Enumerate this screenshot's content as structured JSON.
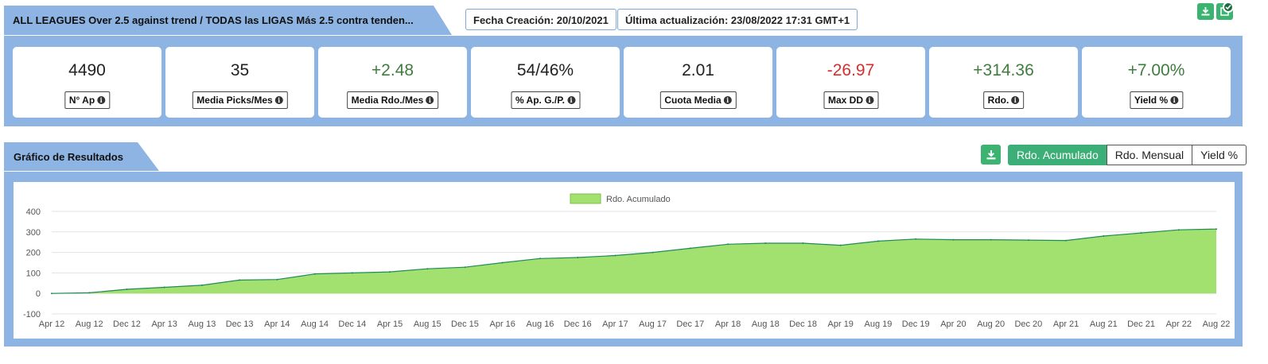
{
  "header": {
    "title": "ALL LEAGUES Over 2.5 against trend / TODAS las LIGAS Más 2.5 contra tenden...",
    "created": "Fecha Creación: 20/10/2021",
    "updated": "Última actualización: 23/08/2022 17:31 GMT+1",
    "icons": [
      "download-icon",
      "check-icon"
    ]
  },
  "stats": [
    {
      "value": "4490",
      "label": "N° Ap",
      "tone": "neutral"
    },
    {
      "value": "35",
      "label": "Media Picks/Mes",
      "tone": "neutral"
    },
    {
      "value": "+2.48",
      "label": "Media Rdo./Mes",
      "tone": "pos"
    },
    {
      "value": "54/46%",
      "label": "% Ap. G./P.",
      "tone": "neutral"
    },
    {
      "value": "2.01",
      "label": "Cuota Media",
      "tone": "neutral"
    },
    {
      "value": "-26.97",
      "label": "Max DD",
      "tone": "neg"
    },
    {
      "value": "+314.36",
      "label": "Rdo.",
      "tone": "pos"
    },
    {
      "value": "+7.00%",
      "label": "Yield %",
      "tone": "pos"
    }
  ],
  "section": {
    "title": "Gráfico de Resultados",
    "toggles": [
      {
        "label": "Rdo. Acumulado",
        "active": true
      },
      {
        "label": "Rdo. Mensual",
        "active": false
      },
      {
        "label": "Yield %",
        "active": false
      }
    ]
  },
  "colors": {
    "band": "#8db4e2",
    "accent_green": "#3cb371",
    "area_fill": "#a2e06f",
    "area_line": "#1f8a5a",
    "positive": "#3f7d3f",
    "negative": "#d32f2f"
  },
  "chart_data": {
    "type": "area",
    "legend": "Rdo. Acumulado",
    "legend_position": "top-center",
    "ylim": [
      -100,
      400
    ],
    "yticks": [
      400,
      300,
      200,
      100,
      0,
      -100
    ],
    "x_tick_labels": [
      "Apr 12",
      "Aug 12",
      "Dec 12",
      "Apr 13",
      "Aug 13",
      "Dec 13",
      "Apr 14",
      "Aug 14",
      "Dec 14",
      "Apr 15",
      "Aug 15",
      "Dec 15",
      "Apr 16",
      "Aug 16",
      "Dec 16",
      "Apr 17",
      "Aug 17",
      "Dec 17",
      "Apr 18",
      "Aug 18",
      "Dec 18",
      "Apr 19",
      "Aug 19",
      "Dec 19",
      "Apr 20",
      "Aug 20",
      "Dec 20",
      "Apr 21",
      "Aug 21",
      "Dec 21",
      "Apr 22",
      "Aug 22"
    ],
    "x": [
      "2012-04",
      "2012-08",
      "2012-12",
      "2013-04",
      "2013-08",
      "2013-12",
      "2014-04",
      "2014-08",
      "2014-12",
      "2015-04",
      "2015-08",
      "2015-12",
      "2016-04",
      "2016-08",
      "2016-12",
      "2017-04",
      "2017-08",
      "2017-12",
      "2018-04",
      "2018-08",
      "2018-12",
      "2019-04",
      "2019-08",
      "2019-12",
      "2020-04",
      "2020-08",
      "2020-12",
      "2021-04",
      "2021-08",
      "2021-12",
      "2022-04",
      "2022-08"
    ],
    "values": [
      0,
      3,
      20,
      30,
      40,
      65,
      68,
      95,
      100,
      105,
      120,
      128,
      150,
      170,
      175,
      185,
      200,
      220,
      240,
      245,
      245,
      235,
      255,
      265,
      262,
      262,
      260,
      258,
      280,
      295,
      310,
      314
    ],
    "grid": true
  }
}
